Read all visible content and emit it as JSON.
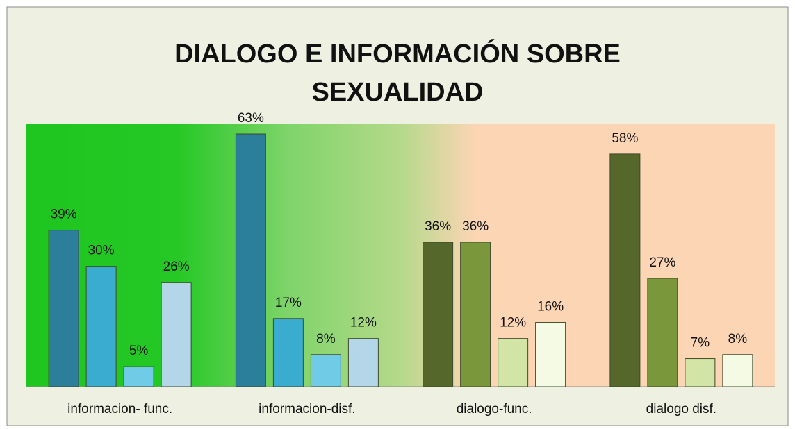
{
  "chart_data": {
    "type": "bar",
    "title": [
      "DIALOGO  E INFORMACIÓN SOBRE",
      "SEXUALIDAD"
    ],
    "categories": [
      "informacion- func.",
      "informacion-disf.",
      "dialogo-func.",
      "dialogo disf."
    ],
    "series": [
      {
        "colors": [
          "#2b7f9b",
          "#2b7f9b",
          "#55672b",
          "#55672b"
        ],
        "values": [
          39,
          63,
          36,
          58
        ],
        "value_labels": [
          "39%",
          "63%",
          "36%",
          "58%"
        ]
      },
      {
        "colors": [
          "#3aaccf",
          "#3aaccf",
          "#7a983b",
          "#7a983b"
        ],
        "values": [
          30,
          17,
          36,
          27
        ],
        "value_labels": [
          "30%",
          "17%",
          "36%",
          "27%"
        ]
      },
      {
        "colors": [
          "#6fcbe6",
          "#6fcbe6",
          "#d3e5a6",
          "#d3e5a6"
        ],
        "values": [
          5,
          8,
          12,
          7
        ],
        "value_labels": [
          "5%",
          "8%",
          "12%",
          "7%"
        ]
      },
      {
        "colors": [
          "#b3d7e8",
          "#b3d7e8",
          "#f4fae4",
          "#f4fae4"
        ],
        "values": [
          26,
          12,
          16,
          8
        ],
        "value_labels": [
          "26%",
          "12%",
          "16%",
          "8%"
        ]
      }
    ]
  }
}
